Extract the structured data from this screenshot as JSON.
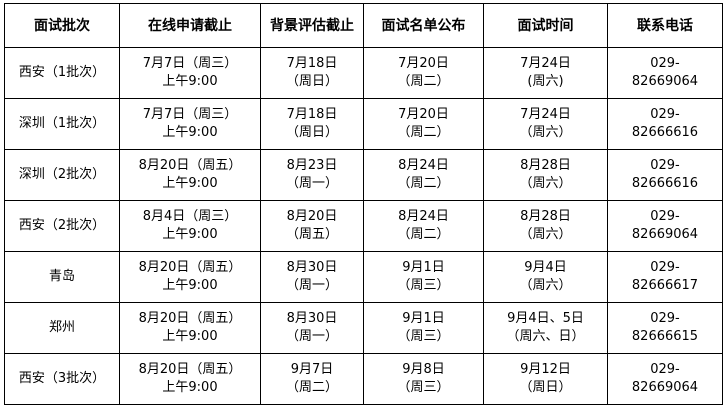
{
  "headers": [
    "面试批次",
    "在线申请截止",
    "背景评估截止",
    "面试名单公布",
    "面试时间",
    "联系电话"
  ],
  "rows": [
    {
      "batch": "西安（1批次）",
      "apply": [
        "7月7日（周三）",
        "上午9:00"
      ],
      "assess": [
        "7月18日",
        "（周日）"
      ],
      "list": [
        "7月20日",
        "（周二）"
      ],
      "interview": [
        "7月24日",
        "(周六)"
      ],
      "phone": [
        "029-",
        "82669064"
      ]
    },
    {
      "batch": "深圳（1批次）",
      "apply": [
        "7月7日（周三）",
        "上午9:00"
      ],
      "assess": [
        "7月18日",
        "（周日）"
      ],
      "list": [
        "7月20日",
        "（周二）"
      ],
      "interview": [
        "7月24日",
        "（周六）"
      ],
      "phone": [
        "029-",
        "82666616"
      ]
    },
    {
      "batch": "深圳（2批次）",
      "apply": [
        "8月20日（周五）",
        "上午9:00"
      ],
      "assess": [
        "8月23日",
        "（周一）"
      ],
      "list": [
        "8月24日",
        "（周二）"
      ],
      "interview": [
        "8月28日",
        "（周六）"
      ],
      "phone": [
        "029-",
        "82666616"
      ]
    },
    {
      "batch": "西安（2批次）",
      "apply": [
        "8月4日（周三）",
        "上午9:00"
      ],
      "assess": [
        "8月20日",
        "（周五）"
      ],
      "list": [
        "8月24日",
        "（周二）"
      ],
      "interview": [
        "8月28日",
        "（周六）"
      ],
      "phone": [
        "029-",
        "82669064"
      ]
    },
    {
      "batch": "青岛",
      "apply": [
        "8月20日（周五）",
        "上午9:00"
      ],
      "assess": [
        "8月30日",
        "（周一）"
      ],
      "list": [
        "9月1日",
        "（周三）"
      ],
      "interview": [
        "9月4日",
        "（周六）"
      ],
      "phone": [
        "029-",
        "82666617"
      ]
    },
    {
      "batch": "郑州",
      "apply": [
        "8月20日（周五）",
        "上午9:00"
      ],
      "assess": [
        "8月30日",
        "（周一）"
      ],
      "list": [
        "9月1日",
        "（周三）"
      ],
      "interview": [
        "9月4日、5日",
        "（周六、日）"
      ],
      "phone": [
        "029-",
        "82666615"
      ]
    },
    {
      "batch": "西安（3批次）",
      "apply": [
        "8月20日（周五）",
        "上午9:00"
      ],
      "assess": [
        "9月7日",
        "（周二）"
      ],
      "list": [
        "9月8日",
        "（周三）"
      ],
      "interview": [
        "9月12日",
        "（周日）"
      ],
      "phone": [
        "029-",
        "82669064"
      ]
    }
  ]
}
